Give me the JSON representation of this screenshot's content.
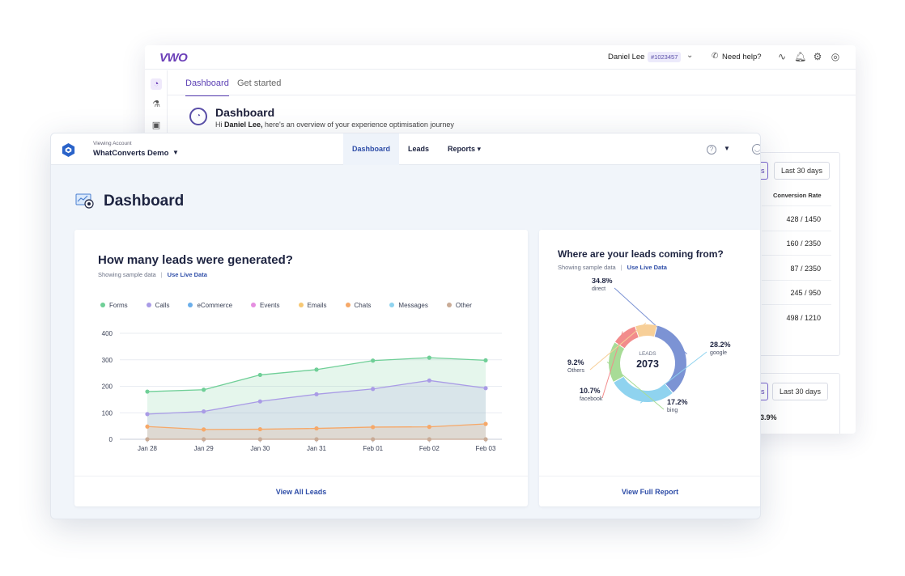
{
  "vwo": {
    "logo": "VWO",
    "user_name": "Daniel Lee",
    "account_id": "#1023457",
    "help_label": "Need help?",
    "tabs": [
      {
        "label": "Dashboard"
      },
      {
        "label": "Get started"
      }
    ],
    "page_title": "Dashboard",
    "greeting_prefix": "Hi ",
    "greeting_name": "Daniel Lee,",
    "greeting_suffix": " here's an overview of your experience optimisation journey",
    "range_button_1": "Last 30 days",
    "range_button_2": "Last 30 days",
    "partial_button_1": "s",
    "partial_button_2": "s",
    "column_header": "Conversion Rate",
    "rows": [
      "428 / 1450",
      "160 / 2350",
      "87 / 2350",
      "245 / 950",
      "498 / 1210"
    ],
    "partial_percent": "3.9%"
  },
  "wc": {
    "viewing_account_label": "Viewing Account",
    "account_name": "WhatConverts Demo",
    "nav": {
      "dashboard": "Dashboard",
      "leads": "Leads",
      "reports": "Reports ▾"
    },
    "page_title": "Dashboard",
    "leads_card": {
      "title": "How many leads were generated?",
      "sample_text": "Showing sample data",
      "separator": "|",
      "live_link": "Use Live Data",
      "footer_link": "View All Leads",
      "legend": [
        {
          "name": "Forms",
          "color": "#6fcf97"
        },
        {
          "name": "Calls",
          "color": "#a99be6"
        },
        {
          "name": "eCommerce",
          "color": "#6aaeea"
        },
        {
          "name": "Events",
          "color": "#e58ee0"
        },
        {
          "name": "Emails",
          "color": "#f7c873"
        },
        {
          "name": "Chats",
          "color": "#f6a868"
        },
        {
          "name": "Messages",
          "color": "#8fd3ef"
        },
        {
          "name": "Other",
          "color": "#c9ab96"
        }
      ]
    },
    "sources_card": {
      "title": "Where are your leads coming from?",
      "sample_text": "Showing sample data",
      "separator": "|",
      "live_link": "Use Live Data",
      "footer_link": "View Full Report"
    }
  },
  "chart_data": [
    {
      "type": "area",
      "title": "How many leads were generated?",
      "categories": [
        "Jan 28",
        "Jan 29",
        "Jan 30",
        "Jan 31",
        "Feb 01",
        "Feb 02",
        "Feb 03"
      ],
      "ylim": [
        0,
        400
      ],
      "yticks": [
        0,
        100,
        200,
        300,
        400
      ],
      "grid": true,
      "series": [
        {
          "name": "Forms",
          "color": "#6fcf97",
          "values": [
            180,
            187,
            243,
            263,
            297,
            308,
            298
          ]
        },
        {
          "name": "Calls",
          "color": "#a99be6",
          "values": [
            95,
            105,
            143,
            170,
            190,
            222,
            193
          ]
        },
        {
          "name": "Chats",
          "color": "#f6a868",
          "values": [
            48,
            37,
            38,
            41,
            46,
            47,
            58
          ]
        },
        {
          "name": "Other",
          "color": "#c9ab96",
          "values": [
            0,
            0,
            0,
            0,
            0,
            0,
            0
          ]
        }
      ]
    },
    {
      "type": "pie",
      "title": "Where are your leads coming from?",
      "center_label": "LEADS",
      "center_value": "2073",
      "slices": [
        {
          "name": "direct",
          "value": 34.8,
          "label": "34.8%",
          "color": "#7c93d4"
        },
        {
          "name": "google",
          "value": 28.2,
          "label": "28.2%",
          "color": "#8fd3ef"
        },
        {
          "name": "bing",
          "value": 17.2,
          "label": "17.2%",
          "color": "#a8dc97"
        },
        {
          "name": "facebook",
          "value": 10.7,
          "label": "10.7%",
          "color": "#f28c8c"
        },
        {
          "name": "Others",
          "value": 9.2,
          "label": "9.2%",
          "color": "#f7cf98"
        }
      ]
    }
  ]
}
